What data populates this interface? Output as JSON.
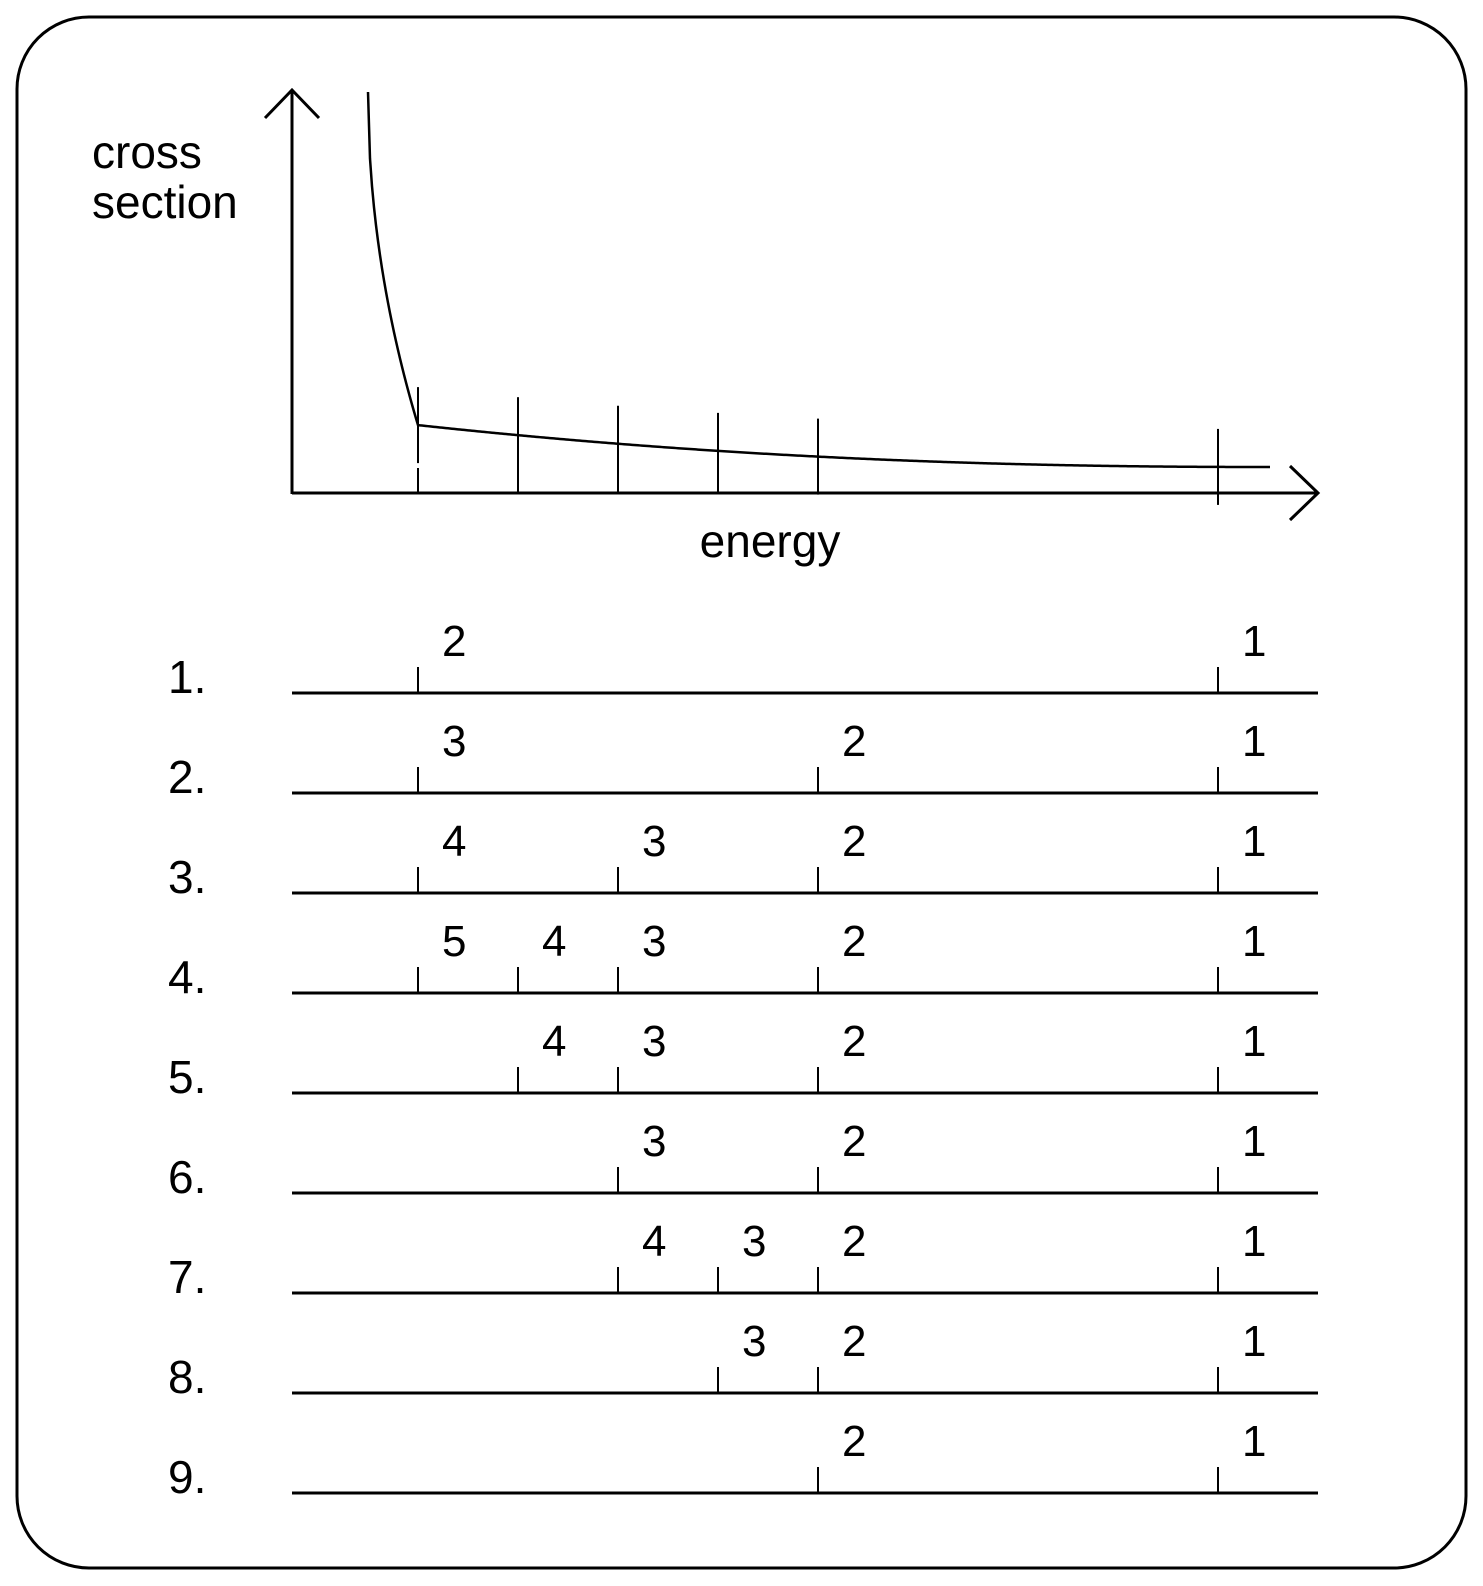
{
  "graph": {
    "y_axis_label_lines": [
      "cross",
      "section"
    ],
    "x_axis_label": "energy"
  },
  "rows": [
    {
      "number": "1.",
      "markers": [
        {
          "label": "2",
          "slot": 0
        },
        {
          "label": "1",
          "slot": 6
        }
      ]
    },
    {
      "number": "2.",
      "markers": [
        {
          "label": "3",
          "slot": 0
        },
        {
          "label": "2",
          "slot": 4
        },
        {
          "label": "1",
          "slot": 6
        }
      ]
    },
    {
      "number": "3.",
      "markers": [
        {
          "label": "4",
          "slot": 0
        },
        {
          "label": "3",
          "slot": 2
        },
        {
          "label": "2",
          "slot": 4
        },
        {
          "label": "1",
          "slot": 6
        }
      ]
    },
    {
      "number": "4.",
      "markers": [
        {
          "label": "5",
          "slot": 0
        },
        {
          "label": "4",
          "slot": 1
        },
        {
          "label": "3",
          "slot": 2
        },
        {
          "label": "2",
          "slot": 4
        },
        {
          "label": "1",
          "slot": 6
        }
      ]
    },
    {
      "number": "5.",
      "markers": [
        {
          "label": "4",
          "slot": 1
        },
        {
          "label": "3",
          "slot": 2
        },
        {
          "label": "2",
          "slot": 4
        },
        {
          "label": "1",
          "slot": 6
        }
      ]
    },
    {
      "number": "6.",
      "markers": [
        {
          "label": "3",
          "slot": 2
        },
        {
          "label": "2",
          "slot": 4
        },
        {
          "label": "1",
          "slot": 6
        }
      ]
    },
    {
      "number": "7.",
      "markers": [
        {
          "label": "4",
          "slot": 2
        },
        {
          "label": "3",
          "slot": 3
        },
        {
          "label": "2",
          "slot": 4
        },
        {
          "label": "1",
          "slot": 6
        }
      ]
    },
    {
      "number": "8.",
      "markers": [
        {
          "label": "3",
          "slot": 3
        },
        {
          "label": "2",
          "slot": 4
        },
        {
          "label": "1",
          "slot": 6
        }
      ]
    },
    {
      "number": "9.",
      "markers": [
        {
          "label": "2",
          "slot": 4
        },
        {
          "label": "1",
          "slot": 6
        }
      ]
    }
  ]
}
